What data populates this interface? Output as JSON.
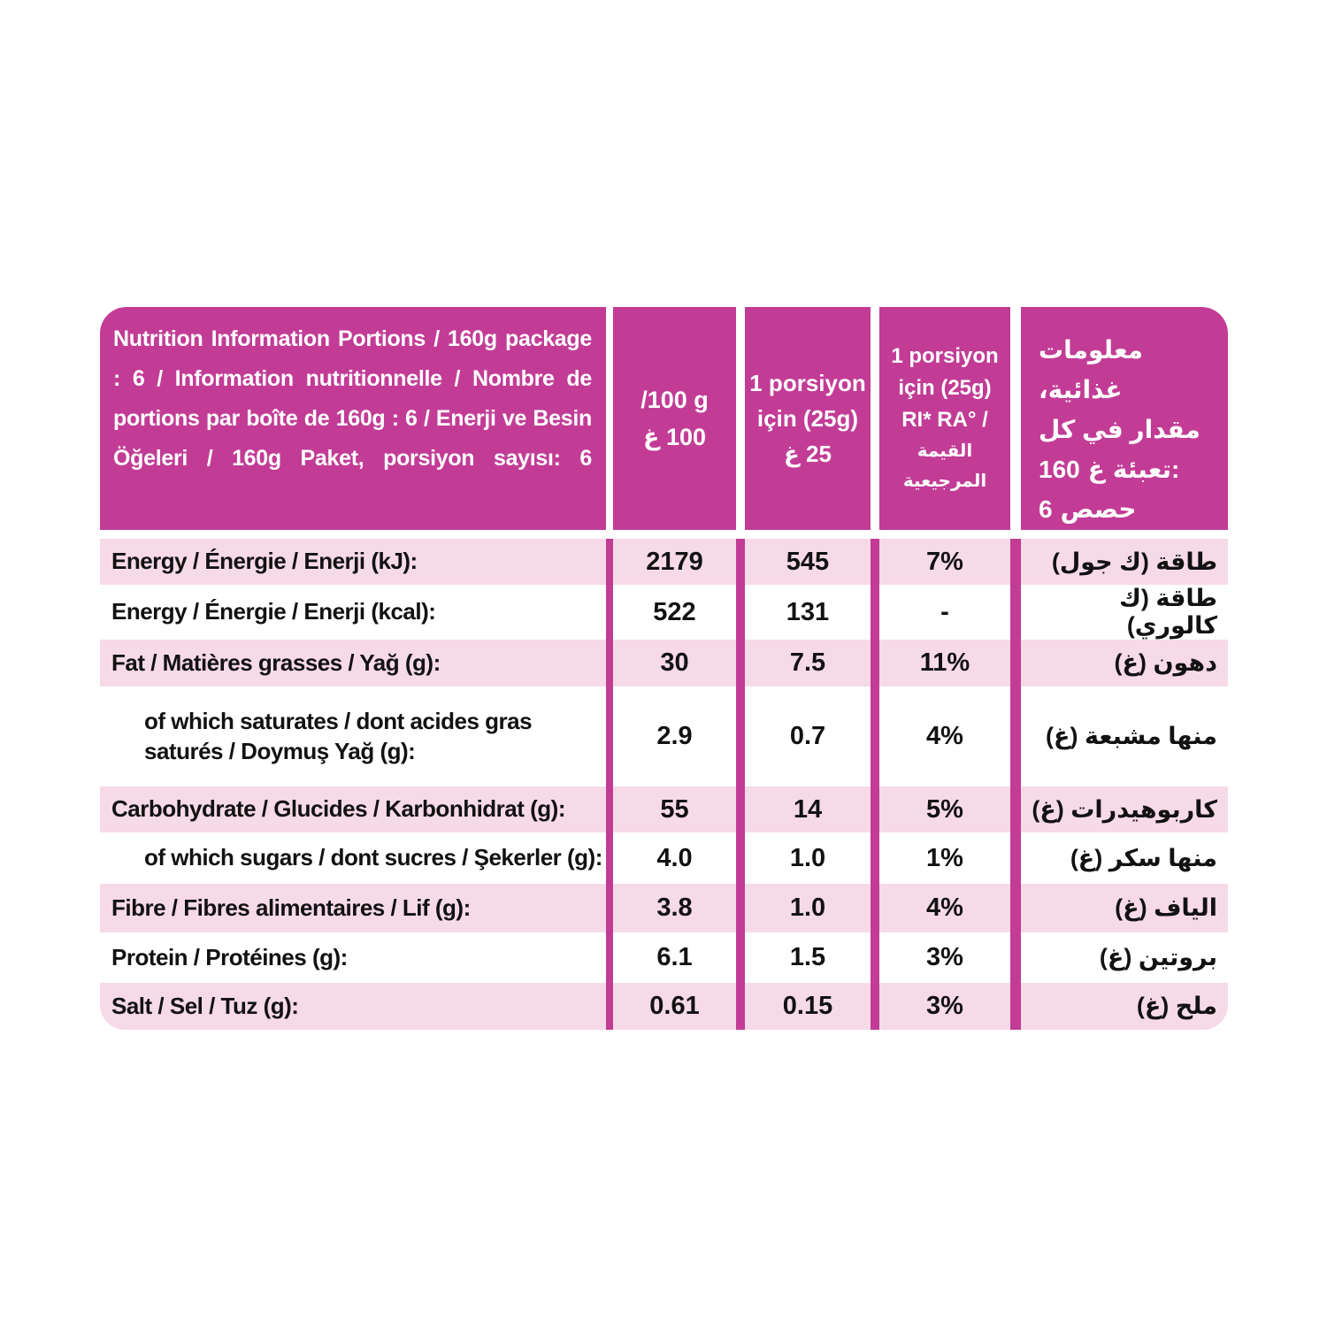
{
  "colors": {
    "magenta": "#C23C96",
    "row_pink": "#F7DAE8",
    "header_text": "#FFFFFF",
    "body_text": "#121212"
  },
  "header": {
    "title": "Nutrition Information Portions / 160g package : 6 / Information nutritionnelle / Nombre de portions par boîte de 160g : 6 / Enerji ve Besin Öğeleri / 160g Paket, porsiyon sayısı:  6",
    "col_per100": {
      "line1": "/100 g",
      "line2": "100 غ"
    },
    "col_portion": {
      "line1": "1 porsiyon",
      "line2": "için (25g)",
      "line3": "25 غ"
    },
    "col_ri": {
      "line1": "1 porsiyon",
      "line2": "için (25g)",
      "line3": "RI*  RA° /",
      "line4": "القيمة المرجيعية"
    },
    "col_arabic": {
      "line1": "معلومات غذائية،",
      "line2": "مقدار في كل",
      "line3_num": "160",
      "line3_unit": "غ",
      "line3_word": "تعبئة:",
      "line4_num": "6",
      "line4_word": "حصص"
    }
  },
  "rows": [
    {
      "label": "Energy / Énergie / Enerji (kJ):",
      "per100": "2179",
      "portion": "545",
      "ri": "7%",
      "arabic": "طاقة (ك جول)"
    },
    {
      "label": "Energy / Énergie / Enerji (kcal):",
      "per100": "522",
      "portion": "131",
      "ri": "-",
      "arabic": "طاقة (ك كالوري)"
    },
    {
      "label": "Fat / Matières grasses / Yağ (g):",
      "per100": "30",
      "portion": "7.5",
      "ri": "11%",
      "arabic": "دهون (غ)"
    },
    {
      "label": "of which saturates / dont acides gras saturés / Doymuş Yağ (g):",
      "per100": "2.9",
      "portion": "0.7",
      "ri": "4%",
      "arabic": "منها مشبعة (غ)"
    },
    {
      "label": "Carbohydrate / Glucides / Karbonhidrat (g):",
      "per100": "55",
      "portion": "14",
      "ri": "5%",
      "arabic": "كاربوهيدرات (غ)"
    },
    {
      "label": "of which sugars / dont sucres / Şekerler (g):",
      "per100": "4.0",
      "portion": "1.0",
      "ri": "1%",
      "arabic": "منها سكر (غ)"
    },
    {
      "label": "Fibre / Fibres alimentaires / Lif (g):",
      "per100": "3.8",
      "portion": "1.0",
      "ri": "4%",
      "arabic": "الياف (غ)"
    },
    {
      "label": "Protein / Protéines (g):",
      "per100": "6.1",
      "portion": "1.5",
      "ri": "3%",
      "arabic": "بروتين (غ)"
    },
    {
      "label": "Salt / Sel / Tuz (g):",
      "per100": "0.61",
      "portion": "0.15",
      "ri": "3%",
      "arabic": "ملح (غ)"
    }
  ]
}
